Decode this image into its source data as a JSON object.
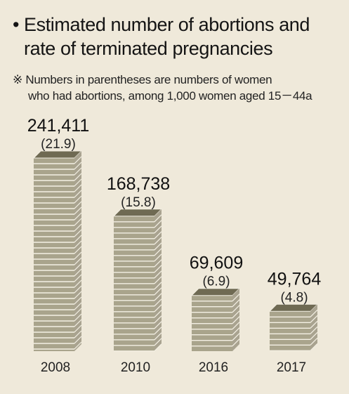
{
  "header": {
    "bullet": "•",
    "title_line1": "Estimated number of abortions and",
    "title_line2": "rate of terminated pregnancies",
    "note_mark": "※",
    "note_line1": "Numbers in parentheses are numbers of women",
    "note_line2": "who had abortions, among 1,000 women aged 15－44a"
  },
  "colors": {
    "background": "#efe9da",
    "stack_light": "#a9a48c",
    "stack_dark": "#6f6a53",
    "stack_edge": "#f4f0e4"
  },
  "chart_data": {
    "type": "bar",
    "categories": [
      "2008",
      "2010",
      "2016",
      "2017"
    ],
    "values": [
      241411,
      168738,
      69609,
      49764
    ],
    "value_labels": [
      "241,411",
      "168,738",
      "69,609",
      "49,764"
    ],
    "rates": [
      21.9,
      15.8,
      6.9,
      4.8
    ],
    "rate_labels": [
      "(21.9)",
      "(15.8)",
      "(6.9)",
      "(4.8)"
    ],
    "title": "Estimated number of abortions and rate of terminated pregnancies",
    "xlabel": "",
    "ylabel": "",
    "grid": false,
    "legend": "none"
  }
}
